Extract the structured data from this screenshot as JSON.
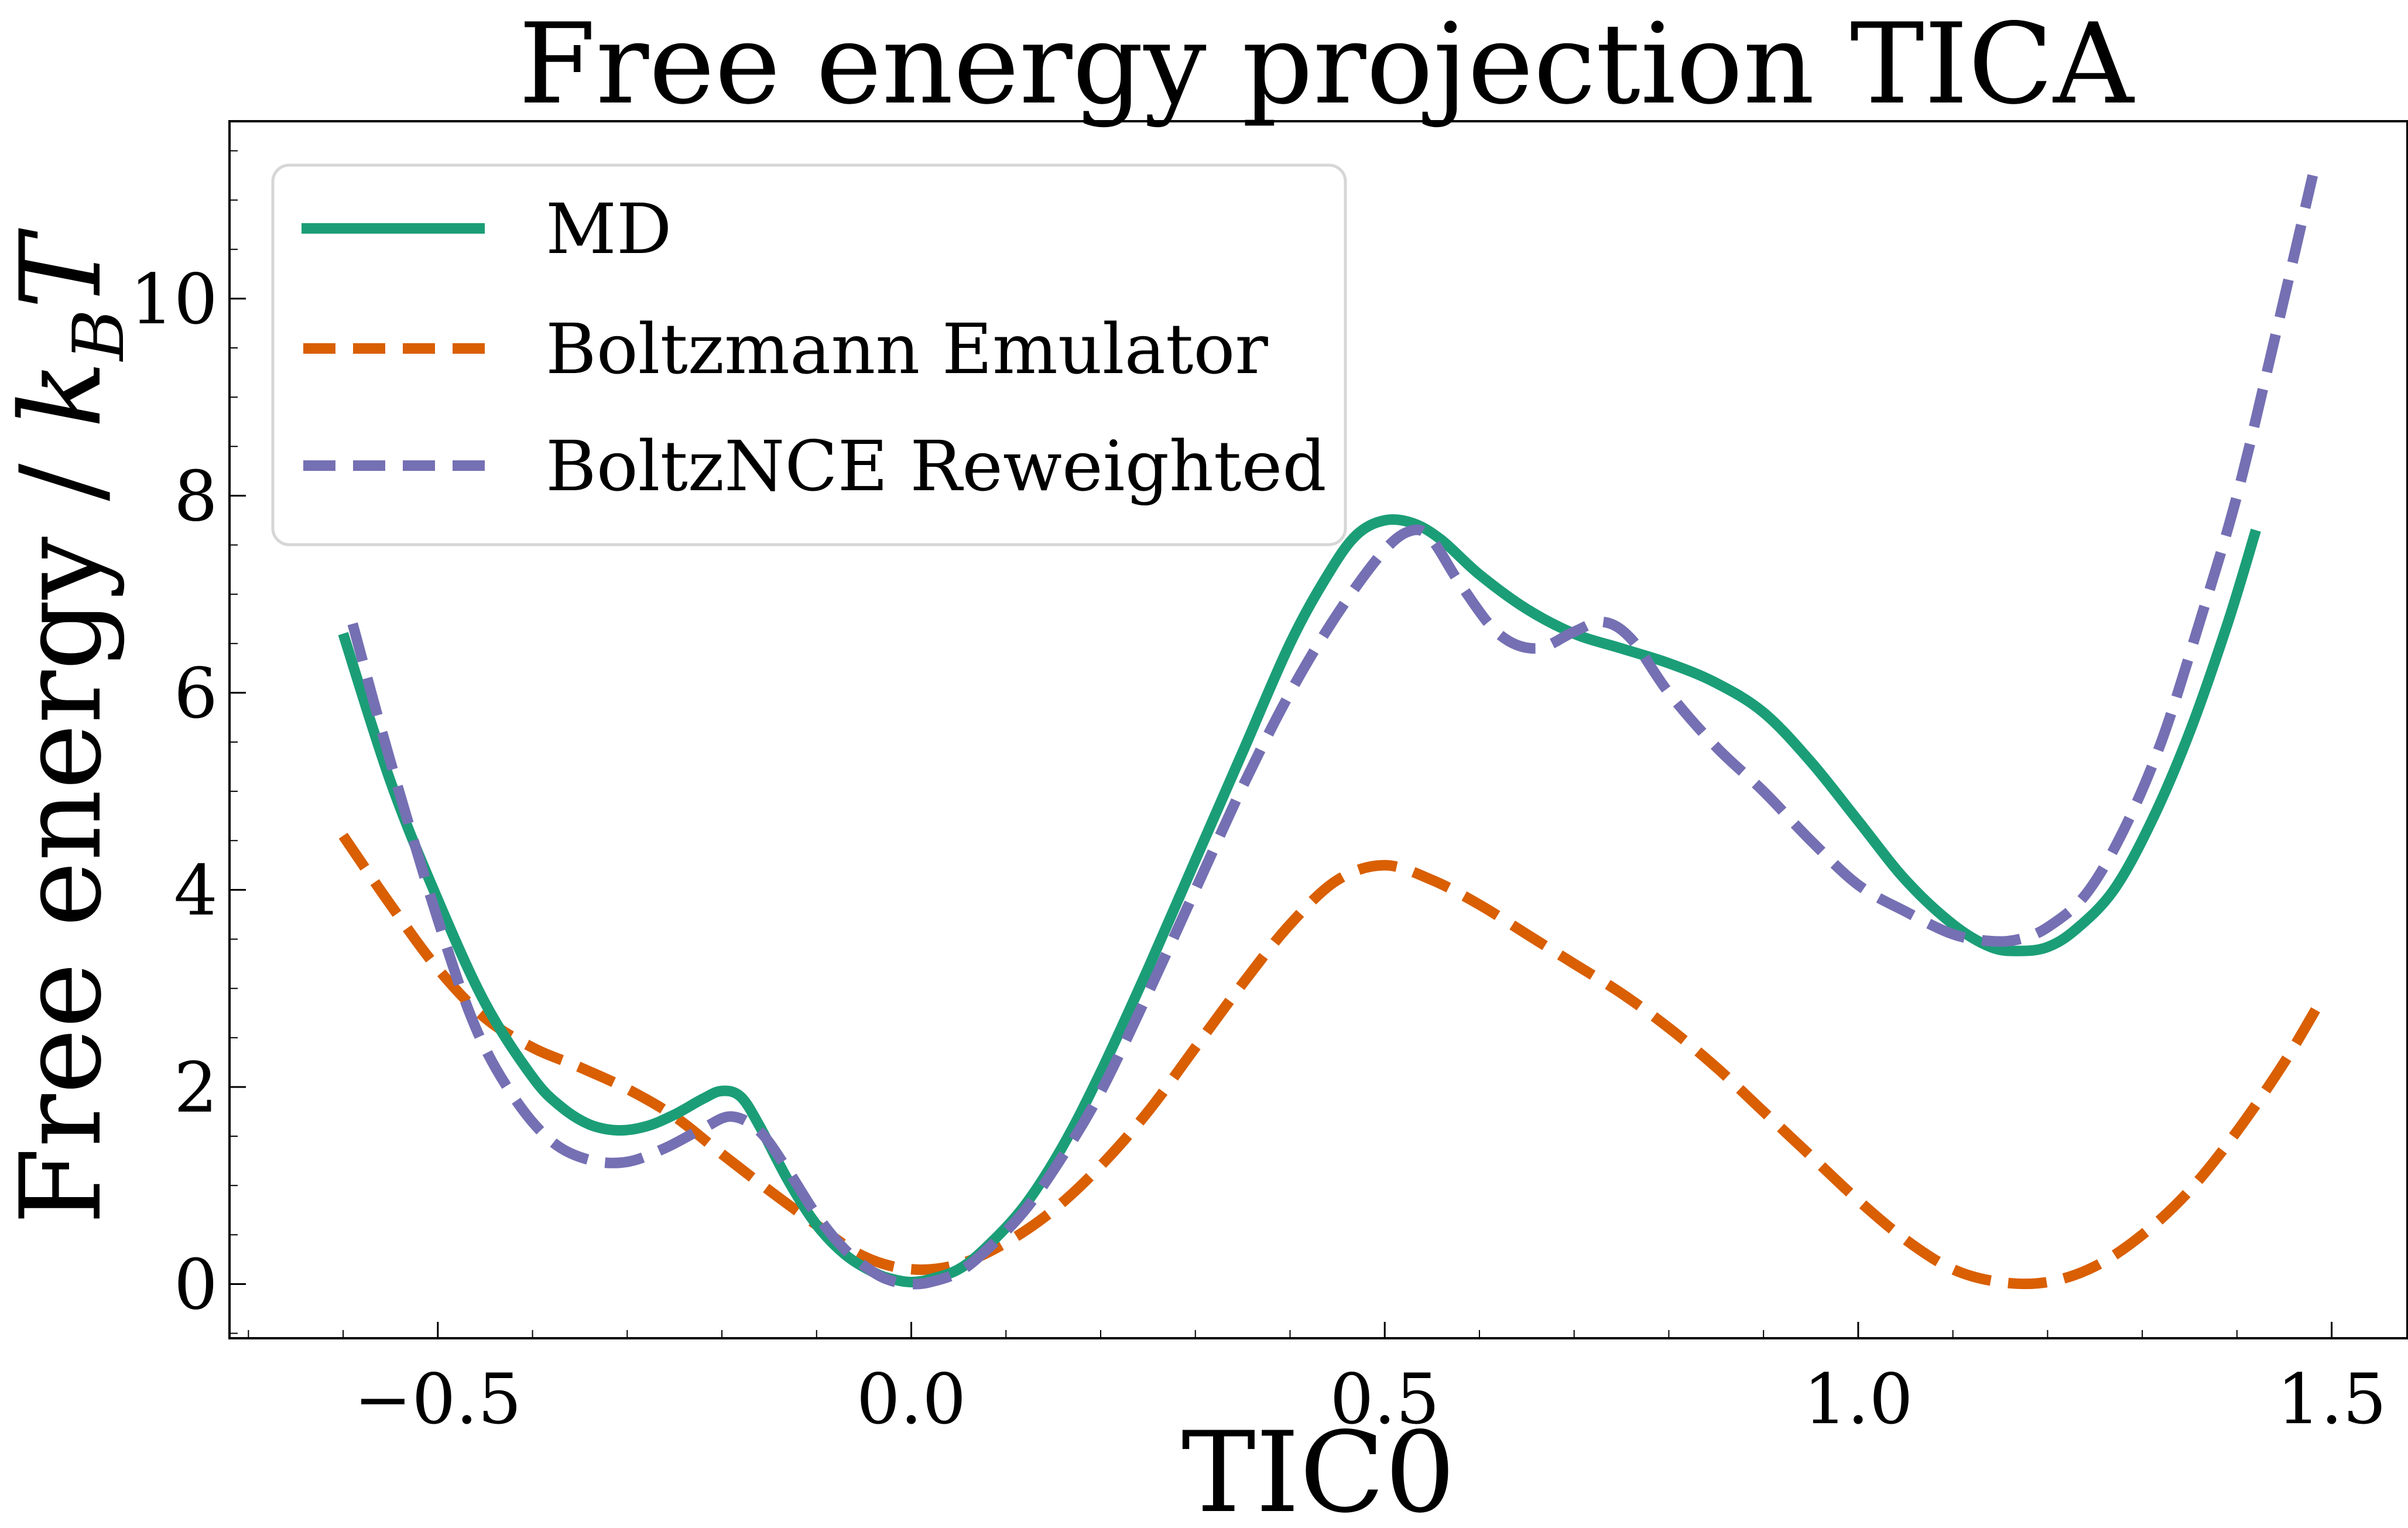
{
  "chart_data": {
    "type": "line",
    "title": "Free energy projection TICA",
    "xlabel": "TIC0",
    "ylabel_text": "Free energy / ",
    "ylabel_math": "k",
    "ylabel_sub": "B",
    "ylabel_tail": "T",
    "xlim": [
      -0.72,
      1.58
    ],
    "ylim": [
      -0.55,
      11.8
    ],
    "x_ticks": [
      -0.5,
      0.0,
      0.5,
      1.0,
      1.5
    ],
    "x_tick_labels": [
      "−0.5",
      "0.0",
      "0.5",
      "1.0",
      "1.5"
    ],
    "x_minor_step": 0.1,
    "y_ticks": [
      0,
      2,
      4,
      6,
      8,
      10
    ],
    "y_tick_labels": [
      "0",
      "2",
      "4",
      "6",
      "8",
      "10"
    ],
    "y_minor_step": 0.5,
    "grid": false,
    "legend_position": "top-left",
    "series": [
      {
        "name": "MD",
        "color": "#1b9e77",
        "style": "solid",
        "x": [
          -0.6,
          -0.55,
          -0.5,
          -0.45,
          -0.4,
          -0.37,
          -0.34,
          -0.31,
          -0.28,
          -0.25,
          -0.22,
          -0.2,
          -0.18,
          -0.16,
          -0.13,
          -0.1,
          -0.07,
          -0.04,
          -0.02,
          0.0,
          0.02,
          0.05,
          0.08,
          0.12,
          0.16,
          0.2,
          0.25,
          0.3,
          0.35,
          0.4,
          0.44,
          0.47,
          0.5,
          0.53,
          0.56,
          0.6,
          0.65,
          0.7,
          0.75,
          0.8,
          0.85,
          0.9,
          0.95,
          1.0,
          1.05,
          1.1,
          1.14,
          1.17,
          1.2,
          1.23,
          1.27,
          1.31,
          1.35,
          1.39,
          1.42
        ],
        "y": [
          6.6,
          5.1,
          3.9,
          2.85,
          2.1,
          1.8,
          1.62,
          1.56,
          1.6,
          1.72,
          1.88,
          1.96,
          1.9,
          1.6,
          1.05,
          0.6,
          0.3,
          0.12,
          0.05,
          0.02,
          0.05,
          0.15,
          0.38,
          0.8,
          1.4,
          2.15,
          3.2,
          4.3,
          5.4,
          6.5,
          7.2,
          7.6,
          7.75,
          7.72,
          7.55,
          7.2,
          6.85,
          6.6,
          6.45,
          6.3,
          6.1,
          5.8,
          5.3,
          4.7,
          4.1,
          3.65,
          3.42,
          3.38,
          3.42,
          3.6,
          4.0,
          4.7,
          5.6,
          6.7,
          7.65
        ]
      },
      {
        "name": "Boltzmann Emulator",
        "color": "#d95f02",
        "style": "dashed",
        "x": [
          -0.6,
          -0.55,
          -0.5,
          -0.45,
          -0.4,
          -0.35,
          -0.3,
          -0.25,
          -0.2,
          -0.15,
          -0.1,
          -0.05,
          0.0,
          0.05,
          0.1,
          0.15,
          0.2,
          0.25,
          0.3,
          0.35,
          0.4,
          0.45,
          0.5,
          0.55,
          0.6,
          0.65,
          0.7,
          0.75,
          0.8,
          0.85,
          0.9,
          0.95,
          1.0,
          1.05,
          1.1,
          1.15,
          1.2,
          1.25,
          1.3,
          1.35,
          1.4,
          1.45,
          1.49
        ],
        "y": [
          4.55,
          3.85,
          3.2,
          2.7,
          2.4,
          2.2,
          1.98,
          1.7,
          1.32,
          0.95,
          0.6,
          0.28,
          0.15,
          0.2,
          0.42,
          0.75,
          1.2,
          1.75,
          2.4,
          3.05,
          3.65,
          4.1,
          4.25,
          4.1,
          3.85,
          3.55,
          3.25,
          2.95,
          2.6,
          2.2,
          1.75,
          1.3,
          0.85,
          0.45,
          0.15,
          0.02,
          0.02,
          0.18,
          0.5,
          0.95,
          1.55,
          2.25,
          2.9
        ]
      },
      {
        "name": "BoltzNCE Reweighted",
        "color": "#7570b3",
        "style": "dashed",
        "x": [
          -0.59,
          -0.55,
          -0.5,
          -0.46,
          -0.42,
          -0.38,
          -0.34,
          -0.3,
          -0.26,
          -0.22,
          -0.19,
          -0.16,
          -0.13,
          -0.1,
          -0.07,
          -0.04,
          -0.02,
          0.0,
          0.02,
          0.05,
          0.08,
          0.12,
          0.16,
          0.2,
          0.25,
          0.3,
          0.35,
          0.4,
          0.45,
          0.5,
          0.53,
          0.55,
          0.58,
          0.62,
          0.66,
          0.7,
          0.73,
          0.76,
          0.8,
          0.85,
          0.9,
          0.95,
          1.0,
          1.05,
          1.1,
          1.14,
          1.17,
          1.2,
          1.24,
          1.28,
          1.32,
          1.36,
          1.4,
          1.44,
          1.48
        ],
        "y": [
          6.7,
          5.3,
          3.7,
          2.6,
          1.9,
          1.45,
          1.26,
          1.24,
          1.38,
          1.58,
          1.7,
          1.55,
          1.15,
          0.7,
          0.35,
          0.12,
          0.03,
          0.0,
          0.02,
          0.12,
          0.35,
          0.75,
          1.3,
          1.95,
          2.95,
          4.0,
          5.05,
          6.0,
          6.8,
          7.45,
          7.65,
          7.55,
          7.1,
          6.6,
          6.45,
          6.62,
          6.72,
          6.55,
          6.0,
          5.45,
          5.0,
          4.5,
          4.05,
          3.78,
          3.55,
          3.48,
          3.5,
          3.62,
          3.95,
          4.6,
          5.5,
          6.7,
          8.0,
          9.6,
          11.25
        ]
      }
    ]
  }
}
